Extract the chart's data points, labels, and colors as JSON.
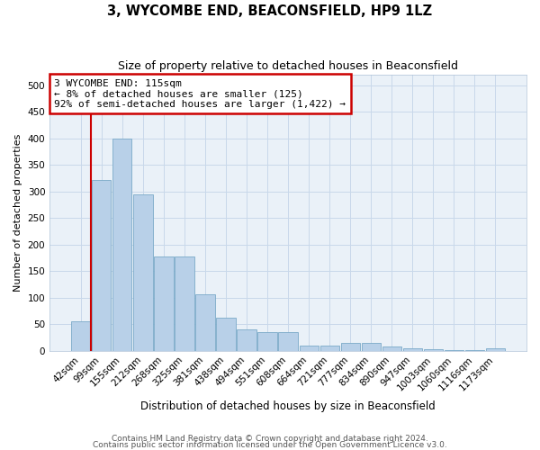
{
  "title": "3, WYCOMBE END, BEACONSFIELD, HP9 1LZ",
  "subtitle": "Size of property relative to detached houses in Beaconsfield",
  "xlabel": "Distribution of detached houses by size in Beaconsfield",
  "ylabel": "Number of detached properties",
  "footer_line1": "Contains HM Land Registry data © Crown copyright and database right 2024.",
  "footer_line2": "Contains public sector information licensed under the Open Government Licence v3.0.",
  "annotation_line1": "3 WYCOMBE END: 115sqm",
  "annotation_line2": "← 8% of detached houses are smaller (125)",
  "annotation_line3": "92% of semi-detached houses are larger (1,422) →",
  "categories": [
    "42sqm",
    "99sqm",
    "155sqm",
    "212sqm",
    "268sqm",
    "325sqm",
    "381sqm",
    "438sqm",
    "494sqm",
    "551sqm",
    "608sqm",
    "664sqm",
    "721sqm",
    "777sqm",
    "834sqm",
    "890sqm",
    "947sqm",
    "1003sqm",
    "1060sqm",
    "1116sqm",
    "1173sqm"
  ],
  "values": [
    55,
    322,
    400,
    295,
    177,
    177,
    107,
    62,
    41,
    36,
    35,
    10,
    10,
    15,
    15,
    8,
    5,
    3,
    1,
    1,
    5
  ],
  "bar_color": "#b8d0e8",
  "bar_edge_color": "#7aaac8",
  "vline_x": 0.5,
  "vline_color": "#cc0000",
  "ylim": [
    0,
    520
  ],
  "yticks": [
    0,
    50,
    100,
    150,
    200,
    250,
    300,
    350,
    400,
    450,
    500
  ],
  "grid_color": "#c8d8ea",
  "bg_color": "#eaf1f8",
  "annotation_box_edge_color": "#cc0000",
  "title_fontsize": 10.5,
  "subtitle_fontsize": 9,
  "ylabel_fontsize": 8,
  "xlabel_fontsize": 8.5,
  "tick_fontsize": 7.5,
  "footer_fontsize": 6.5
}
